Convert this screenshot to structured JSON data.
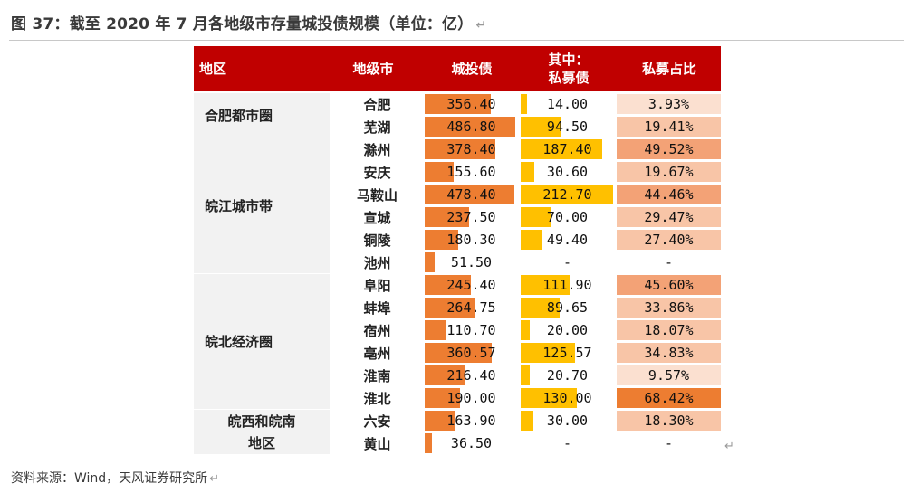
{
  "title": "图 37：截至 2020 年 7 月各地级市存量城投债规模（单位：亿）",
  "return_mark": "↵",
  "source": "资料来源：Wind，天风证券研究所",
  "headers": {
    "region": "地区",
    "city": "地级市",
    "urban_bond": "城投债",
    "private_line1": "其中：",
    "private_line2": "私募债",
    "private_ratio": "私募占比"
  },
  "colors": {
    "header_bg": "#c00000",
    "urban_bar": "#ed7d31",
    "private_bar": "#ffc000",
    "region_bg": "#f2f2f2"
  },
  "regions": [
    {
      "name_lines": [
        "合肥都市圈"
      ],
      "start": 0,
      "count": 2,
      "align": "left"
    },
    {
      "name_lines": [
        "皖江城市带"
      ],
      "start": 2,
      "count": 6,
      "align": "left"
    },
    {
      "name_lines": [
        "皖北经济圈"
      ],
      "start": 8,
      "count": 6,
      "align": "left"
    },
    {
      "name_lines": [
        "皖西和皖南",
        "地区"
      ],
      "start": 14,
      "count": 2,
      "align": "center"
    }
  ],
  "rows": [
    {
      "city": "合肥",
      "urban": "356.40",
      "urban_value": 356.4,
      "private": "14.00",
      "private_value": 14.0,
      "ratio": "3.93%",
      "ratio_value": 3.93
    },
    {
      "city": "芜湖",
      "urban": "486.80",
      "urban_value": 486.8,
      "private": "94.50",
      "private_value": 94.5,
      "ratio": "19.41%",
      "ratio_value": 19.41
    },
    {
      "city": "滁州",
      "urban": "378.40",
      "urban_value": 378.4,
      "private": "187.40",
      "private_value": 187.4,
      "ratio": "49.52%",
      "ratio_value": 49.52
    },
    {
      "city": "安庆",
      "urban": "155.60",
      "urban_value": 155.6,
      "private": "30.60",
      "private_value": 30.6,
      "ratio": "19.67%",
      "ratio_value": 19.67
    },
    {
      "city": "马鞍山",
      "urban": "478.40",
      "urban_value": 478.4,
      "private": "212.70",
      "private_value": 212.7,
      "ratio": "44.46%",
      "ratio_value": 44.46
    },
    {
      "city": "宣城",
      "urban": "237.50",
      "urban_value": 237.5,
      "private": "70.00",
      "private_value": 70.0,
      "ratio": "29.47%",
      "ratio_value": 29.47
    },
    {
      "city": "铜陵",
      "urban": "180.30",
      "urban_value": 180.3,
      "private": "49.40",
      "private_value": 49.4,
      "ratio": "27.40%",
      "ratio_value": 27.4
    },
    {
      "city": "池州",
      "urban": "51.50",
      "urban_value": 51.5,
      "private": "-",
      "private_value": 0,
      "ratio": "-",
      "ratio_value": null
    },
    {
      "city": "阜阳",
      "urban": "245.40",
      "urban_value": 245.4,
      "private": "111.90",
      "private_value": 111.9,
      "ratio": "45.60%",
      "ratio_value": 45.6
    },
    {
      "city": "蚌埠",
      "urban": "264.75",
      "urban_value": 264.75,
      "private": "89.65",
      "private_value": 89.65,
      "ratio": "33.86%",
      "ratio_value": 33.86
    },
    {
      "city": "宿州",
      "urban": "110.70",
      "urban_value": 110.7,
      "private": "20.00",
      "private_value": 20.0,
      "ratio": "18.07%",
      "ratio_value": 18.07
    },
    {
      "city": "亳州",
      "urban": "360.57",
      "urban_value": 360.57,
      "private": "125.57",
      "private_value": 125.57,
      "ratio": "34.83%",
      "ratio_value": 34.83
    },
    {
      "city": "淮南",
      "urban": "216.40",
      "urban_value": 216.4,
      "private": "20.70",
      "private_value": 20.7,
      "ratio": "9.57%",
      "ratio_value": 9.57
    },
    {
      "city": "淮北",
      "urban": "190.00",
      "urban_value": 190.0,
      "private": "130.00",
      "private_value": 130.0,
      "ratio": "68.42%",
      "ratio_value": 68.42
    },
    {
      "city": "六安",
      "urban": "163.90",
      "urban_value": 163.9,
      "private": "30.00",
      "private_value": 30.0,
      "ratio": "18.30%",
      "ratio_value": 18.3
    },
    {
      "city": "黄山",
      "urban": "36.50",
      "urban_value": 36.5,
      "private": "-",
      "private_value": 0,
      "ratio": "-",
      "ratio_value": null
    }
  ]
}
